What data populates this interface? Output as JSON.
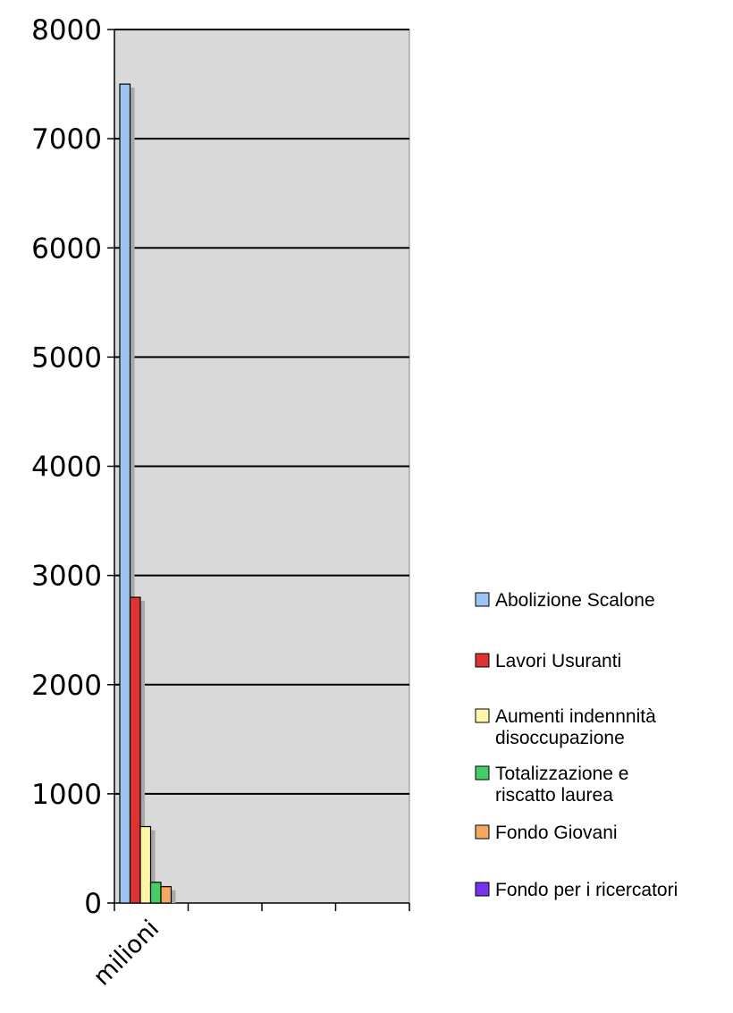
{
  "chart_data": {
    "type": "bar",
    "categories": [
      "milioni"
    ],
    "series": [
      {
        "name": "Abolizione Scalone",
        "values": [
          7500
        ],
        "color": "#9ec5f2"
      },
      {
        "name": "Lavori Usuranti",
        "values": [
          2800
        ],
        "color": "#dd3333"
      },
      {
        "name": [
          "Aumenti indennnità",
          "disoccupazione"
        ],
        "values": [
          700
        ],
        "color": "#fff7a8"
      },
      {
        "name": [
          "Totalizzazione e",
          "riscatto laurea"
        ],
        "values": [
          190
        ],
        "color": "#44cc66"
      },
      {
        "name": "Fondo Giovani",
        "values": [
          150
        ],
        "color": "#f5a860"
      },
      {
        "name": "Fondo per i ricercatori",
        "values": [
          0
        ],
        "color": "#7733ee"
      }
    ],
    "yticks": [
      "0",
      "1000",
      "2000",
      "3000",
      "4000",
      "5000",
      "6000",
      "7000",
      "8000"
    ],
    "ylim": [
      0,
      8000
    ],
    "grid": true,
    "plot_background": "#d9d9d9",
    "legend_position": "right"
  }
}
